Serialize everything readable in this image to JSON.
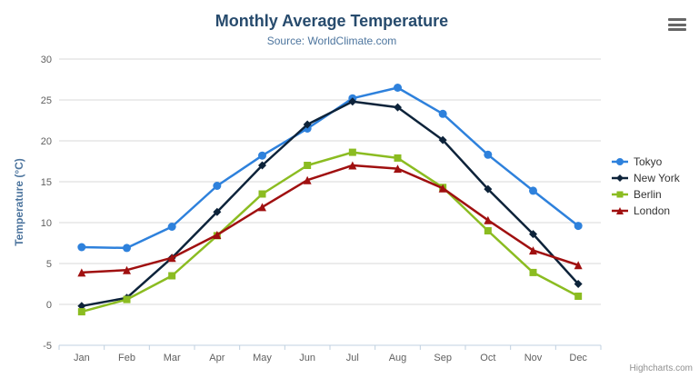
{
  "header": {
    "title": "Monthly Average Temperature",
    "subtitle": "Source: WorldClimate.com"
  },
  "export_menu": {
    "icon": "hamburger-menu-icon"
  },
  "credits": {
    "label": "Highcharts.com"
  },
  "chart_data": {
    "type": "line",
    "title": "Monthly Average Temperature",
    "subtitle": "Source: WorldClimate.com",
    "categories": [
      "Jan",
      "Feb",
      "Mar",
      "Apr",
      "May",
      "Jun",
      "Jul",
      "Aug",
      "Sep",
      "Oct",
      "Nov",
      "Dec"
    ],
    "series": [
      {
        "name": "Tokyo",
        "color": "#2e81dc",
        "marker": "circle",
        "values": [
          7.0,
          6.9,
          9.5,
          14.5,
          18.2,
          21.5,
          25.2,
          26.5,
          23.3,
          18.3,
          13.9,
          9.6
        ]
      },
      {
        "name": "New York",
        "color": "#0d233a",
        "marker": "diamond",
        "values": [
          -0.2,
          0.8,
          5.7,
          11.3,
          17.0,
          22.0,
          24.8,
          24.1,
          20.1,
          14.1,
          8.6,
          2.5
        ]
      },
      {
        "name": "Berlin",
        "color": "#8bbc21",
        "marker": "square",
        "values": [
          -0.9,
          0.6,
          3.5,
          8.4,
          13.5,
          17.0,
          18.6,
          17.9,
          14.3,
          9.0,
          3.9,
          1.0
        ]
      },
      {
        "name": "London",
        "color": "#a01010",
        "marker": "triangle",
        "values": [
          3.9,
          4.2,
          5.7,
          8.5,
          11.9,
          15.2,
          17.0,
          16.6,
          14.2,
          10.3,
          6.6,
          4.8
        ]
      }
    ],
    "xlabel": "",
    "ylabel": "Temperature (°C)",
    "ylim": [
      -5,
      30
    ],
    "ytick_interval": 5,
    "grid": true,
    "legend_position": "right",
    "grid_color": "#d8d8d8",
    "axis_color": "#c0d0e0"
  }
}
